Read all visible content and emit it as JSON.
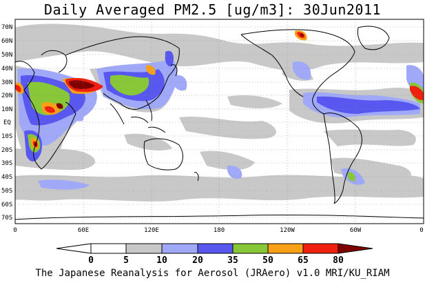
{
  "title": "Daily Averaged PM2.5 [ug/m3]: 30Jun2011",
  "footer": "The Japanese Reanalysis for Aerosol (JRAero) v1.0 MRI/KU_RIAM",
  "lat_ticks": [
    "70N",
    "60N",
    "50N",
    "40N",
    "30N",
    "20N",
    "10N",
    "EQ",
    "10S",
    "20S",
    "30S",
    "40S",
    "50S",
    "60S",
    "70S"
  ],
  "lon_ticks": [
    "0",
    "60E",
    "120E",
    "180",
    "120W",
    "60W",
    "0"
  ],
  "colorbar": {
    "labels": [
      "0",
      "5",
      "10",
      "20",
      "35",
      "50",
      "65",
      "80"
    ],
    "colors": [
      "#ffffff",
      "#c8c8c8",
      "#a0a8f8",
      "#5858f0",
      "#88c838",
      "#f8a018",
      "#f02010",
      "#800000"
    ]
  },
  "chart_data": {
    "type": "heatmap",
    "title": "Daily Averaged PM2.5 [ug/m3]: 30Jun2011",
    "variable": "PM2.5",
    "units": "ug/m3",
    "date": "30Jun2011",
    "lon_range": [
      0,
      360
    ],
    "lat_range": [
      -75,
      75
    ],
    "levels": [
      0,
      5,
      10,
      20,
      35,
      50,
      65,
      80
    ],
    "grid": true
  }
}
